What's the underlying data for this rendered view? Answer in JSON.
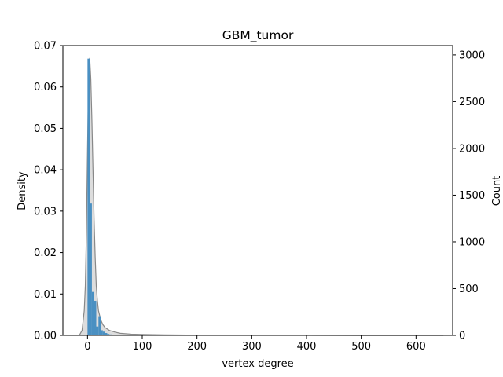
{
  "chart_data": {
    "type": "bar",
    "title": "GBM_tumor",
    "xlabel": "vertex degree",
    "ylabel_left": "Density",
    "ylabel_right": "Count",
    "xlim": [
      -45,
      667
    ],
    "ylim_left": [
      0,
      0.07
    ],
    "ylim_right": [
      0,
      3100
    ],
    "x_ticks": [
      0,
      100,
      200,
      300,
      400,
      500,
      600
    ],
    "y_ticks_left": [
      0.0,
      0.01,
      0.02,
      0.03,
      0.04,
      0.05,
      0.06,
      0.07
    ],
    "y_ticks_left_labels": [
      "0.00",
      "0.01",
      "0.02",
      "0.03",
      "0.04",
      "0.05",
      "0.06",
      "0.07"
    ],
    "y_ticks_right": [
      0,
      500,
      1000,
      1500,
      2000,
      2500,
      3000
    ],
    "grid": false,
    "series": [
      {
        "kind": "histogram",
        "axis": "right",
        "color": "#4a90c2",
        "bins": [
          {
            "x0": 0,
            "x1": 4,
            "count": 2960
          },
          {
            "x0": 4,
            "x1": 8,
            "count": 1410
          },
          {
            "x0": 8,
            "x1": 12,
            "count": 465
          },
          {
            "x0": 12,
            "x1": 16,
            "count": 370
          },
          {
            "x0": 16,
            "x1": 20,
            "count": 95
          },
          {
            "x0": 20,
            "x1": 24,
            "count": 205
          },
          {
            "x0": 24,
            "x1": 28,
            "count": 55
          },
          {
            "x0": 28,
            "x1": 32,
            "count": 40
          },
          {
            "x0": 32,
            "x1": 36,
            "count": 25
          },
          {
            "x0": 36,
            "x1": 40,
            "count": 15
          },
          {
            "x0": 40,
            "x1": 44,
            "count": 10
          },
          {
            "x0": 44,
            "x1": 48,
            "count": 8
          },
          {
            "x0": 48,
            "x1": 52,
            "count": 6
          },
          {
            "x0": 52,
            "x1": 56,
            "count": 5
          },
          {
            "x0": 56,
            "x1": 60,
            "count": 4
          },
          {
            "x0": 60,
            "x1": 64,
            "count": 3
          },
          {
            "x0": 68,
            "x1": 72,
            "count": 3
          },
          {
            "x0": 80,
            "x1": 84,
            "count": 2
          },
          {
            "x0": 96,
            "x1": 100,
            "count": 2
          },
          {
            "x0": 112,
            "x1": 116,
            "count": 1
          },
          {
            "x0": 132,
            "x1": 136,
            "count": 2
          },
          {
            "x0": 164,
            "x1": 168,
            "count": 1
          },
          {
            "x0": 260,
            "x1": 264,
            "count": 1
          },
          {
            "x0": 300,
            "x1": 304,
            "count": 1
          },
          {
            "x0": 640,
            "x1": 644,
            "count": 1
          }
        ]
      },
      {
        "kind": "kde",
        "axis": "left",
        "color": "#888888",
        "fill": "#dddddd",
        "x": [
          -15,
          -10,
          -6,
          -4,
          -2,
          0,
          2,
          4,
          6,
          8,
          10,
          12,
          14,
          16,
          18,
          20,
          24,
          28,
          32,
          40,
          50,
          60,
          80,
          100,
          140,
          200,
          300,
          400,
          500,
          600,
          650
        ],
        "y": [
          0.0,
          0.0012,
          0.006,
          0.012,
          0.025,
          0.045,
          0.062,
          0.067,
          0.062,
          0.052,
          0.04,
          0.028,
          0.019,
          0.012,
          0.0085,
          0.006,
          0.0038,
          0.0026,
          0.0019,
          0.0012,
          0.0008,
          0.0005,
          0.0003,
          0.00022,
          0.00012,
          6e-05,
          3e-05,
          1e-05,
          0.0,
          0.0,
          0.0
        ]
      }
    ]
  }
}
